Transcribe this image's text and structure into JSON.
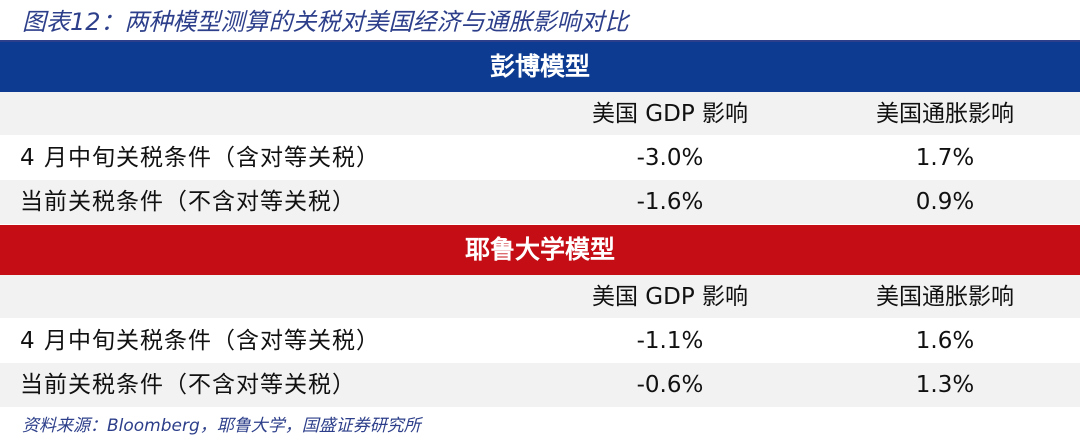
{
  "title": "图表12：两种模型测算的关税对美国经济与通胀影响对比",
  "sections": [
    {
      "name": "彭博模型",
      "header": {
        "label": "",
        "gdp": "美国 GDP 影响",
        "inflation": "美国通胀影响"
      },
      "rows": [
        {
          "label": "4 月中旬关税条件（含对等关税）",
          "gdp": "-3.0%",
          "inflation": "1.7%"
        },
        {
          "label": "当前关税条件（不含对等关税）",
          "gdp": "-1.6%",
          "inflation": "0.9%"
        }
      ]
    },
    {
      "name": "耶鲁大学模型",
      "header": {
        "label": "",
        "gdp": "美国 GDP 影响",
        "inflation": "美国通胀影响"
      },
      "rows": [
        {
          "label": "4 月中旬关税条件（含对等关税）",
          "gdp": "-1.1%",
          "inflation": "1.6%"
        },
        {
          "label": "当前关税条件（不含对等关税）",
          "gdp": "-0.6%",
          "inflation": "1.3%"
        }
      ]
    }
  ],
  "source": "资料来源：Bloomberg，耶鲁大学，国盛证券研究所",
  "colors": {
    "title": "#2d3f8a",
    "band_bloomberg": "#0c3b91",
    "band_yale": "#c40d14",
    "row_shaded": "#f2f2f2"
  }
}
